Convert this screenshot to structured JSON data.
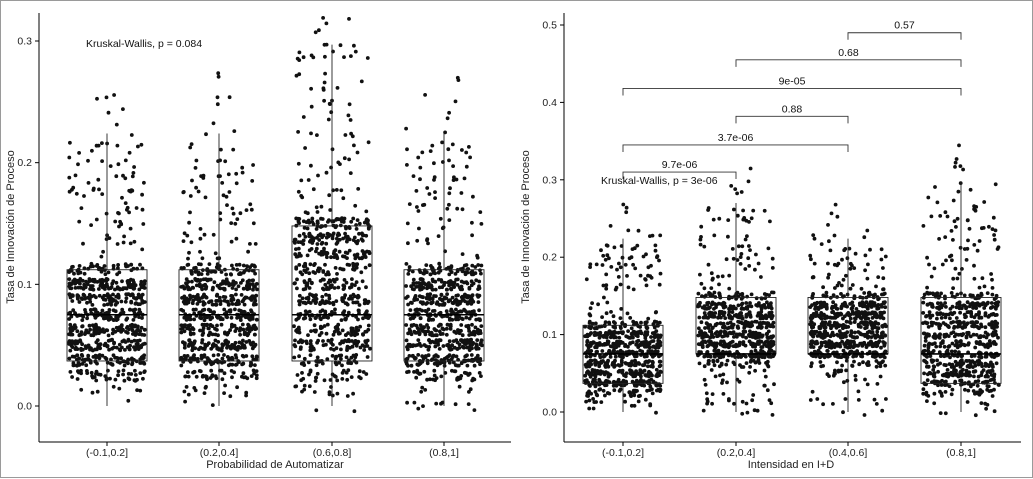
{
  "chart_data": [
    {
      "type": "boxplot",
      "ylabel": "Tasa de Innovación de Proceso",
      "xlabel": "Probabilidad de Automatizar",
      "ylim": [
        -0.015,
        0.31
      ],
      "yticks": [
        "0.0",
        "0.1",
        "0.2",
        "0.3"
      ],
      "ytick_values": [
        0.0,
        0.1,
        0.2,
        0.3
      ],
      "categories": [
        "(-0.1,0.2]",
        "(0.2,0.4]",
        "(0.6,0.8]",
        "(0.8,1]"
      ],
      "boxes": [
        {
          "q1": 0.037,
          "median": 0.075,
          "q3": 0.112,
          "whisker_low": 0.0,
          "whisker_high": 0.224
        },
        {
          "q1": 0.037,
          "median": 0.075,
          "q3": 0.112,
          "whisker_low": 0.0,
          "whisker_high": 0.224
        },
        {
          "q1": 0.037,
          "median": 0.075,
          "q3": 0.148,
          "whisker_low": 0.0,
          "whisker_high": 0.297
        },
        {
          "q1": 0.037,
          "median": 0.075,
          "q3": 0.112,
          "whisker_low": 0.0,
          "whisker_high": 0.224
        }
      ],
      "test_label": "Kruskal-Wallis, p = 0.084",
      "test_value_y": 0.298,
      "comparisons": []
    },
    {
      "type": "boxplot",
      "ylabel": "Tasa de Innovación de Proceso",
      "xlabel": "Intensidad en I+D",
      "ylim": [
        -0.015,
        0.52
      ],
      "yticks": [
        "0.0",
        "0.1",
        "0.2",
        "0.3",
        "0.4",
        "0.5"
      ],
      "ytick_values": [
        0.0,
        0.1,
        0.2,
        0.3,
        0.4,
        0.5
      ],
      "categories": [
        "(-0.1,0.2]",
        "(0.2,0.4]",
        "(0.4,0.6]",
        "(0.8,1]"
      ],
      "boxes": [
        {
          "q1": 0.037,
          "median": 0.075,
          "q3": 0.112,
          "whisker_low": 0.0,
          "whisker_high": 0.224
        },
        {
          "q1": 0.075,
          "median": 0.075,
          "q3": 0.148,
          "whisker_low": 0.0,
          "whisker_high": 0.27
        },
        {
          "q1": 0.075,
          "median": 0.075,
          "q3": 0.148,
          "whisker_low": 0.0,
          "whisker_high": 0.224
        },
        {
          "q1": 0.037,
          "median": 0.075,
          "q3": 0.148,
          "whisker_low": 0.0,
          "whisker_high": 0.297
        }
      ],
      "test_label": "Kruskal-Wallis, p = 3e-06",
      "test_value_y": 0.295,
      "comparisons": [
        {
          "from": 0,
          "to": 1,
          "label": "9.7e-06",
          "y": 0.31
        },
        {
          "from": 0,
          "to": 2,
          "label": "3.7e-06",
          "y": 0.345
        },
        {
          "from": 1,
          "to": 2,
          "label": "0.88",
          "y": 0.382
        },
        {
          "from": 0,
          "to": 3,
          "label": "9e-05",
          "y": 0.418
        },
        {
          "from": 1,
          "to": 3,
          "label": "0.68",
          "y": 0.455
        },
        {
          "from": 2,
          "to": 3,
          "label": "0.57",
          "y": 0.49
        }
      ]
    }
  ]
}
